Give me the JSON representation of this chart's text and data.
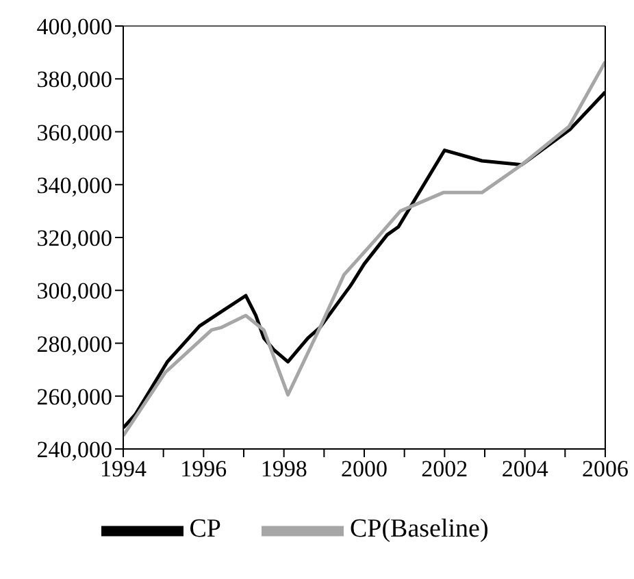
{
  "chart_data": {
    "type": "line",
    "series": [
      {
        "name": "CP",
        "color": "#000000",
        "x": [
          1994,
          1994.3,
          1995.1,
          1995.9,
          1996.3,
          1997.05,
          1997.3,
          1997.5,
          1997.75,
          1998.1,
          1998.6,
          1998.9,
          1999.67,
          2000,
          2000.57,
          2000.85,
          2002,
          2002.93,
          2003.92,
          2005.13,
          2006
        ],
        "values": [
          248000,
          253000,
          273000,
          286500,
          290500,
          298000,
          290500,
          282000,
          277500,
          273000,
          282000,
          286000,
          302000,
          310000,
          321000,
          324000,
          353000,
          349000,
          347500,
          361000,
          375000
        ]
      },
      {
        "name": "CP(Baseline)",
        "color": "#a6a6a6",
        "x": [
          1994,
          1995.05,
          1996.2,
          1996.45,
          1997.05,
          1997.5,
          1998.1,
          1998.9,
          1999.5,
          2000.3,
          2000.9,
          2001.97,
          2002.93,
          2003.92,
          2005.1,
          2006
        ],
        "values": [
          245000,
          269000,
          285000,
          286000,
          290500,
          285000,
          260500,
          286000,
          306000,
          319500,
          330000,
          337000,
          337000,
          347500,
          362000,
          386500
        ]
      }
    ],
    "xlim": [
      1994,
      2006
    ],
    "xticks": [
      1994,
      {
        "value": 1995,
        "label": null
      },
      1996,
      {
        "value": 1997,
        "label": null
      },
      1998,
      {
        "value": 1999,
        "label": null
      },
      2000,
      {
        "value": 2001,
        "label": null
      },
      2002,
      {
        "value": 2003,
        "label": null
      },
      2004,
      {
        "value": 2005,
        "label": null
      },
      2006
    ],
    "ylim": [
      240000,
      400000
    ],
    "yticks": [
      {
        "value": 240000,
        "label": "240,000"
      },
      {
        "value": 260000,
        "label": "260,000"
      },
      {
        "value": 280000,
        "label": "280,000"
      },
      {
        "value": 300000,
        "label": "300,000"
      },
      {
        "value": 320000,
        "label": "320,000"
      },
      {
        "value": 340000,
        "label": "340,000"
      },
      {
        "value": 360000,
        "label": "360,000"
      },
      {
        "value": 380000,
        "label": "380,000"
      },
      {
        "value": 400000,
        "label": "400,000"
      }
    ],
    "legend": "bottom",
    "marker": "none",
    "line_style": "solid"
  }
}
